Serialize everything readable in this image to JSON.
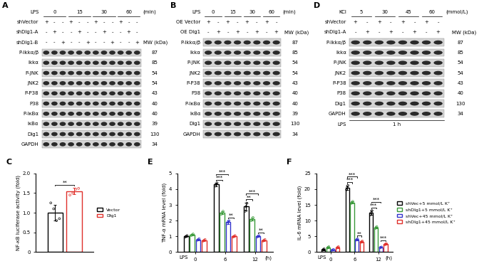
{
  "blots": [
    {
      "panel": "A",
      "treatment": {
        "label": "LPS",
        "levels": [
          "0",
          "15",
          "30",
          "60"
        ],
        "unit": "(min)"
      },
      "conditions": [
        {
          "label": "shVector",
          "signs": [
            "+",
            "-",
            "-",
            "+",
            "-",
            "-",
            "+",
            "-",
            "-",
            "+",
            "-",
            "-"
          ]
        },
        {
          "label": "shDlg1-A",
          "signs": [
            "-",
            "+",
            "-",
            "-",
            "+",
            "-",
            "-",
            "+",
            "-",
            "-",
            "+",
            "-"
          ]
        },
        {
          "label": "shDlg1-B",
          "signs": [
            "-",
            "-",
            "+",
            "-",
            "-",
            "+",
            "-",
            "-",
            "+",
            "-",
            "-",
            "+"
          ]
        }
      ],
      "mw_header": "MW (kDa)",
      "proteins": [
        {
          "name": "P-Ikkα/β",
          "mw": 87
        },
        {
          "name": "Ikkα",
          "mw": 85
        },
        {
          "name": "P-JNK",
          "mw": 54
        },
        {
          "name": "JNK2",
          "mw": 54
        },
        {
          "name": "P-P38",
          "mw": 43
        },
        {
          "name": "P38",
          "mw": 40
        },
        {
          "name": "P-IκBα",
          "mw": 40
        },
        {
          "name": "IκBα",
          "mw": 39
        },
        {
          "name": "Dlg1",
          "mw": 130
        },
        {
          "name": "GAPDH",
          "mw": 34
        }
      ]
    },
    {
      "panel": "B",
      "treatment": {
        "label": "LPS",
        "levels": [
          "0",
          "15",
          "30",
          "60"
        ],
        "unit": "(min)"
      },
      "conditions": [
        {
          "label": "OE Vector",
          "signs": [
            "+",
            "-",
            "+",
            "-",
            "+",
            "-",
            "+",
            "-"
          ]
        },
        {
          "label": "OE Dlg1",
          "signs": [
            "-",
            "+",
            "-",
            "+",
            "-",
            "+",
            "-",
            "+"
          ]
        }
      ],
      "mw_header": "MW (kDa)",
      "proteins": [
        {
          "name": "P-Ikkα/β",
          "mw": 87
        },
        {
          "name": "Ikkα",
          "mw": 85
        },
        {
          "name": "P-JNK",
          "mw": 54
        },
        {
          "name": "JNK2",
          "mw": 54
        },
        {
          "name": "P-P38",
          "mw": 43
        },
        {
          "name": "P38",
          "mw": 40
        },
        {
          "name": "P-IκBα",
          "mw": 40
        },
        {
          "name": "IκBα",
          "mw": 39
        },
        {
          "name": "Dlg1",
          "mw": 130
        },
        {
          "name": "GAPDH",
          "mw": 34
        }
      ]
    },
    {
      "panel": "D",
      "treatment": {
        "label": "KCl",
        "levels": [
          "5",
          "30",
          "45",
          "60"
        ],
        "unit": "(mmol/L)"
      },
      "conditions": [
        {
          "label": "shVector",
          "signs": [
            "+",
            "-",
            "+",
            "-",
            "+",
            "-",
            "+",
            "-"
          ]
        },
        {
          "label": "shDlg1-A",
          "signs": [
            "-",
            "+",
            "-",
            "+",
            "-",
            "+",
            "-",
            "+"
          ]
        }
      ],
      "mw_header": "MW (kDa)",
      "proteins": [
        {
          "name": "P-Ikkα/β",
          "mw": 87
        },
        {
          "name": "Ikkα",
          "mw": 85
        },
        {
          "name": "P-JNK",
          "mw": 54
        },
        {
          "name": "JNK2",
          "mw": 54
        },
        {
          "name": "P-P38",
          "mw": 43
        },
        {
          "name": "P38",
          "mw": 40
        },
        {
          "name": "Dlg1",
          "mw": 130
        },
        {
          "name": "GAPDH",
          "mw": 34
        }
      ],
      "footer": {
        "label": "LPS",
        "text": "1 h"
      }
    }
  ],
  "chart_data": [
    {
      "panel": "C",
      "type": "bar",
      "y_label": "NF-κB luciferase activity (fold)",
      "categories": [
        null
      ],
      "tick_labels": "y",
      "grid": false,
      "legend": "right",
      "marker": "o",
      "ylim": [
        0,
        2
      ],
      "yticks": [
        0,
        0.5,
        {
          "value": 1,
          "label": "1.0"
        },
        1.5,
        {
          "value": 2,
          "label": "2.0"
        }
      ],
      "series": [
        {
          "name": "Vector",
          "color": "#000000",
          "values": [
            1.0
          ],
          "errors": [
            0.2
          ],
          "points": [
            [
              1.25,
              1.1,
              0.8,
              0.85
            ]
          ]
        },
        {
          "name": "Dlg1",
          "color": "#e0302b",
          "values": [
            1.55
          ],
          "errors": [
            0.08
          ],
          "points": [
            [
              1.45,
              1.5,
              1.6,
              1.62
            ]
          ]
        }
      ],
      "significance": [
        {
          "at": 0,
          "pair": [
            0,
            1
          ],
          "text": "**"
        }
      ]
    },
    {
      "panel": "E",
      "type": "bar",
      "y_label": "TNF-α mRNA level (fold)",
      "x_prefix": "LPS",
      "x_suffix": "(h)",
      "categories": [
        "0",
        "6",
        "12"
      ],
      "grid": false,
      "marker": "o",
      "ylim": [
        0,
        5
      ],
      "yticks": [
        0,
        1,
        2,
        3,
        4,
        5
      ],
      "series": [
        {
          "name": "shVec+5 mmol/L K⁺",
          "color": "#000000",
          "values": [
            1.0,
            4.3,
            2.9
          ],
          "errors": [
            0.05,
            0.1,
            0.25
          ],
          "points": [
            [
              0.95,
              1.0,
              1.05
            ],
            [
              4.2,
              4.3,
              4.4
            ],
            [
              2.6,
              2.9,
              3.1
            ]
          ]
        },
        {
          "name": "shDlg1+5 mmol/L K⁺",
          "color": "#3a9a3a",
          "values": [
            1.1,
            2.5,
            2.1
          ],
          "errors": [
            0.05,
            0.1,
            0.1
          ],
          "points": [
            [
              1.05,
              1.1,
              1.15
            ],
            [
              2.4,
              2.5,
              2.6
            ],
            [
              2.0,
              2.1,
              2.2
            ]
          ]
        },
        {
          "name": "shVec+45 mmol/L K⁺",
          "color": "#3333cc",
          "values": [
            0.8,
            1.9,
            1.0
          ],
          "errors": [
            0.05,
            0.1,
            0.05
          ],
          "points": [
            [
              0.75,
              0.8,
              0.85
            ],
            [
              1.8,
              1.9,
              2.0
            ],
            [
              0.95,
              1.0,
              1.05
            ]
          ]
        },
        {
          "name": "shDlg1+45 mmol/L K⁺",
          "color": "#e0302b",
          "values": [
            0.75,
            1.0,
            0.75
          ],
          "errors": [
            0.05,
            0.05,
            0.05
          ],
          "points": [
            [
              0.7,
              0.75,
              0.8
            ],
            [
              0.95,
              1.0,
              1.05
            ],
            [
              0.7,
              0.75,
              0.8
            ]
          ]
        }
      ],
      "significance": [
        {
          "at": 1,
          "pair": [
            0,
            1
          ],
          "text": "***"
        },
        {
          "at": 1,
          "pair": [
            0,
            2
          ],
          "text": "***"
        },
        {
          "at": 1,
          "pair": [
            2,
            3
          ],
          "text": "**"
        },
        {
          "at": 2,
          "pair": [
            0,
            1
          ],
          "text": "**"
        },
        {
          "at": 2,
          "pair": [
            0,
            2
          ],
          "text": "***"
        },
        {
          "at": 2,
          "pair": [
            2,
            3
          ],
          "text": "**"
        }
      ]
    },
    {
      "panel": "F",
      "type": "bar",
      "y_label": "IL-6 mRNA level (fold)",
      "x_prefix": "LPS",
      "x_suffix": "(h)",
      "categories": [
        "0",
        "6",
        "12"
      ],
      "grid": false,
      "legend": "right",
      "marker": "o",
      "ylim": [
        0,
        25
      ],
      "yticks": [
        0,
        5,
        10,
        15,
        20,
        25
      ],
      "series": [
        {
          "name": "shVec+5 mmol/L K⁺",
          "color": "#000000",
          "values": [
            0.8,
            20.5,
            12.5
          ],
          "errors": [
            0.2,
            0.7,
            0.7
          ],
          "points": [
            [
              0.6,
              0.8,
              1.0
            ],
            [
              19.8,
              20.5,
              21.2
            ],
            [
              11.8,
              12.5,
              13.2
            ]
          ]
        },
        {
          "name": "shDlg1+5 mmol/L K⁺",
          "color": "#3a9a3a",
          "values": [
            1.5,
            15.8,
            7.8
          ],
          "errors": [
            0.2,
            0.3,
            0.3
          ],
          "points": [
            [
              1.3,
              1.5,
              1.7
            ],
            [
              15.5,
              15.8,
              16.1
            ],
            [
              7.5,
              7.8,
              8.1
            ]
          ]
        },
        {
          "name": "shVec+45 mmol/L K⁺",
          "color": "#3333cc",
          "values": [
            0.7,
            4.0,
            1.5
          ],
          "errors": [
            0.1,
            0.2,
            0.1
          ],
          "points": [
            [
              0.6,
              0.7,
              0.8
            ],
            [
              3.8,
              4.0,
              4.2
            ],
            [
              1.4,
              1.5,
              1.6
            ]
          ]
        },
        {
          "name": "shDlg1+45 mmol/L K⁺",
          "color": "#e0302b",
          "values": [
            1.5,
            3.3,
            2.5
          ],
          "errors": [
            0.2,
            0.2,
            0.2
          ],
          "points": [
            [
              1.3,
              1.5,
              1.7
            ],
            [
              3.1,
              3.3,
              3.5
            ],
            [
              2.3,
              2.5,
              2.7
            ]
          ]
        }
      ],
      "significance": [
        {
          "at": 1,
          "pair": [
            0,
            1
          ],
          "text": "***"
        },
        {
          "at": 1,
          "pair": [
            0,
            2
          ],
          "text": "***"
        },
        {
          "at": 1,
          "pair": [
            2,
            3
          ],
          "text": "**"
        },
        {
          "at": 2,
          "pair": [
            0,
            1
          ],
          "text": "***"
        },
        {
          "at": 2,
          "pair": [
            0,
            2
          ],
          "text": "***"
        },
        {
          "at": 2,
          "pair": [
            2,
            3
          ],
          "text": "***"
        }
      ]
    }
  ]
}
